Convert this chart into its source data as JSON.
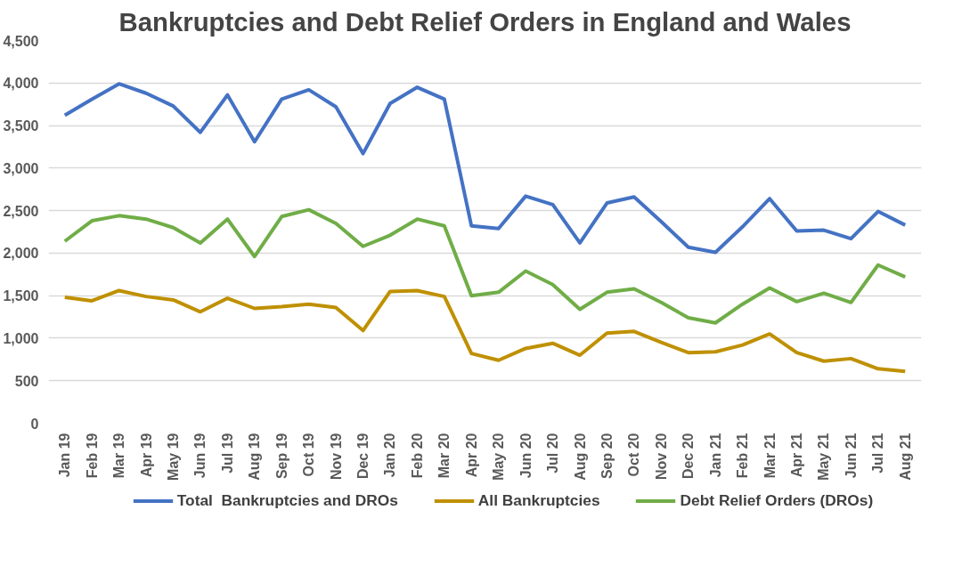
{
  "chart_data": {
    "type": "line",
    "title": "Bankruptcies and Debt Relief Orders in England and Wales",
    "categories": [
      "Jan 19",
      "Feb 19",
      "Mar 19",
      "Apr 19",
      "May 19",
      "Jun 19",
      "Jul 19",
      "Aug 19",
      "Sep 19",
      "Oct 19",
      "Nov 19",
      "Dec 19",
      "Jan 20",
      "Feb 20",
      "Mar 20",
      "Apr 20",
      "May 20",
      "Jun 20",
      "Jul 20",
      "Aug 20",
      "Sep 20",
      "Oct 20",
      "Nov 20",
      "Dec 20",
      "Jan 21",
      "Feb 21",
      "Mar 21",
      "Apr 21",
      "May 21",
      "Jun 21",
      "Jul 21",
      "Aug 21"
    ],
    "series": [
      {
        "name": "Total  Bankruptcies and DROs",
        "color": "#4472c4",
        "values": [
          3620,
          3810,
          3990,
          3880,
          3730,
          3420,
          3860,
          3310,
          3810,
          3920,
          3720,
          3170,
          3760,
          3950,
          3810,
          2320,
          2290,
          2670,
          2570,
          2120,
          2590,
          2660,
          2370,
          2070,
          2010,
          2310,
          2640,
          2260,
          2270,
          2170,
          2490,
          2330
        ]
      },
      {
        "name": "All Bankruptcies",
        "color": "#bf9000",
        "values": [
          1480,
          1440,
          1560,
          1490,
          1450,
          1310,
          1470,
          1350,
          1370,
          1400,
          1360,
          1090,
          1550,
          1560,
          1490,
          820,
          740,
          880,
          940,
          800,
          1060,
          1080,
          950,
          830,
          840,
          920,
          1050,
          830,
          730,
          760,
          640,
          610
        ]
      },
      {
        "name": "Debt Relief Orders (DROs)",
        "color": "#70ad47",
        "values": [
          2140,
          2380,
          2440,
          2400,
          2300,
          2120,
          2400,
          1960,
          2430,
          2510,
          2350,
          2080,
          2210,
          2400,
          2320,
          1500,
          1540,
          1790,
          1630,
          1340,
          1540,
          1580,
          1420,
          1240,
          1180,
          1400,
          1590,
          1430,
          1530,
          1420,
          1860,
          1720
        ]
      }
    ],
    "ylim": [
      0,
      4500
    ],
    "yticks": [
      {
        "value": 0,
        "label": "0"
      },
      {
        "value": 500,
        "label": "500"
      },
      {
        "value": 1000,
        "label": "1,000"
      },
      {
        "value": 1500,
        "label": "1,500"
      },
      {
        "value": 2000,
        "label": "2,000"
      },
      {
        "value": 2500,
        "label": "2,500"
      },
      {
        "value": 3000,
        "label": "3,000"
      },
      {
        "value": 3500,
        "label": "3,500"
      },
      {
        "value": 4000,
        "label": "4,000"
      },
      {
        "value": 4500,
        "label": "4,500"
      }
    ],
    "grid": "y",
    "legend": "bottom",
    "marker": "none",
    "line_style": "solid"
  }
}
